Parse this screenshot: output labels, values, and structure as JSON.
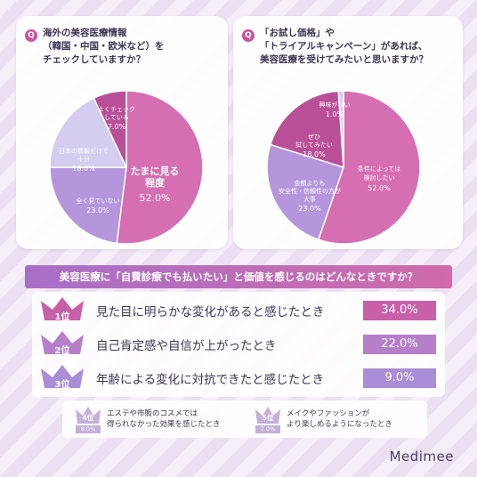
{
  "left_card": {
    "q_badge": "Q",
    "question": [
      "海外の美容医療情報",
      "（韓国・中国・欧米など）を",
      "チェックしていますか？"
    ]
  },
  "right_card": {
    "q_badge": "Q",
    "question": [
      "「お試し価格」や",
      "「トライアルキャンペーン」があれば、",
      "美容医療を受けてみたいと思いますか？"
    ]
  },
  "ranking": {
    "title": "美容医療に「自費診療でも払いたい」と価値を感じるのはどんなときですか？",
    "top": [
      {
        "rank_label": "1位",
        "text": "見た目に明らかな変化があると感じたとき",
        "value": "34.0%",
        "color": "#c85fa9"
      },
      {
        "rank_label": "2位",
        "text": "自己肯定感や自信が上がったとき",
        "value": "22.0%",
        "color": "#b77ec9"
      },
      {
        "rank_label": "3位",
        "text": "年齢による変化に対抗できたと感じたとき",
        "value": "9.0%",
        "color": "#a98dd6"
      }
    ],
    "minor": [
      {
        "rank_label": "4位",
        "value": "8.0%",
        "lines": [
          "エステや市販のコスメでは",
          "得られなかった効果を感じたとき"
        ]
      },
      {
        "rank_label": "5位",
        "value": "7.0%",
        "lines": [
          "メイクやファッションが",
          "より楽しめるようになったとき"
        ]
      }
    ]
  },
  "logo": "Medimee",
  "chart_data": [
    {
      "type": "pie",
      "slices": [
        {
          "label": "たまに見る程度",
          "value": 52.0,
          "color": "#d56fb1"
        },
        {
          "label": "全く見ていない",
          "value": 23.0,
          "color": "#b596dc"
        },
        {
          "label": "日本の情報だけで十分",
          "value": 18.0,
          "color": "#d4cdef"
        },
        {
          "label": "よくチェックしている",
          "value": 7.0,
          "color": "#b94f97"
        }
      ]
    },
    {
      "type": "pie",
      "slices": [
        {
          "label": "条件によっては検討したい",
          "value": 52.0,
          "color": "#d56fb1"
        },
        {
          "label": "金額よりも安全性・信頼性の方が大事",
          "value": 23.0,
          "color": "#b596dc"
        },
        {
          "label": "ぜひ試してみたい",
          "value": 18.0,
          "color": "#b94f97"
        },
        {
          "label": "興味がない",
          "value": 1.0,
          "color": "#d4cdef"
        }
      ]
    }
  ]
}
